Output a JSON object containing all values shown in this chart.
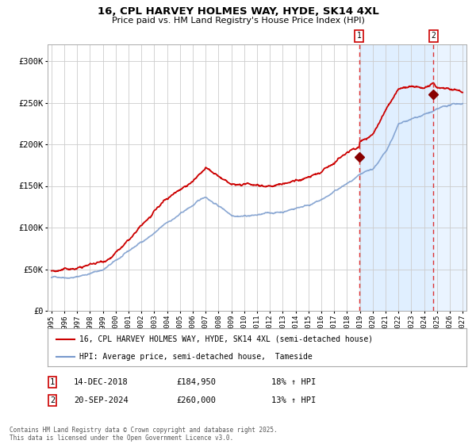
{
  "title": "16, CPL HARVEY HOLMES WAY, HYDE, SK14 4XL",
  "subtitle": "Price paid vs. HM Land Registry's House Price Index (HPI)",
  "legend_line1": "16, CPL HARVEY HOLMES WAY, HYDE, SK14 4XL (semi-detached house)",
  "legend_line2": "HPI: Average price, semi-detached house,  Tameside",
  "annotation1_date": "14-DEC-2018",
  "annotation1_price": "£184,950",
  "annotation1_hpi": "18% ↑ HPI",
  "annotation2_date": "20-SEP-2024",
  "annotation2_price": "£260,000",
  "annotation2_hpi": "13% ↑ HPI",
  "copyright": "Contains HM Land Registry data © Crown copyright and database right 2025.\nThis data is licensed under the Open Government Licence v3.0.",
  "red_line_color": "#cc0000",
  "blue_line_color": "#7799cc",
  "marker_color": "#880000",
  "vline_color": "#dd3333",
  "shade_color": "#ddeeff",
  "grid_color": "#cccccc",
  "bg_color": "#ffffff",
  "ylim": [
    0,
    320000
  ],
  "start_year": 1995,
  "end_year": 2027,
  "point1_year": 2018.95,
  "point2_year": 2024.72,
  "point1_value": 184950,
  "point2_value": 260000
}
